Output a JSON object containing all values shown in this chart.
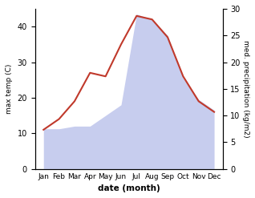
{
  "months": [
    "Jan",
    "Feb",
    "Mar",
    "Apr",
    "May",
    "Jun",
    "Jul",
    "Aug",
    "Sep",
    "Oct",
    "Nov",
    "Dec"
  ],
  "temperature": [
    11,
    14,
    19,
    27,
    26,
    35,
    43,
    42,
    37,
    26,
    19,
    16
  ],
  "precipitation": [
    7.5,
    7.5,
    8,
    8,
    10,
    12,
    29,
    28,
    25,
    17,
    13,
    11
  ],
  "temp_color": "#c0392b",
  "precip_color": "#b0b8e8",
  "temp_ylim": [
    0,
    45
  ],
  "precip_ylim": [
    0,
    30
  ],
  "temp_yticks": [
    0,
    10,
    20,
    30,
    40
  ],
  "precip_yticks": [
    0,
    5,
    10,
    15,
    20,
    25,
    30
  ],
  "ylabel_left": "max temp (C)",
  "ylabel_right": "med. precipitation (kg/m2)",
  "xlabel": "date (month)",
  "fig_width": 3.18,
  "fig_height": 2.47,
  "dpi": 100
}
